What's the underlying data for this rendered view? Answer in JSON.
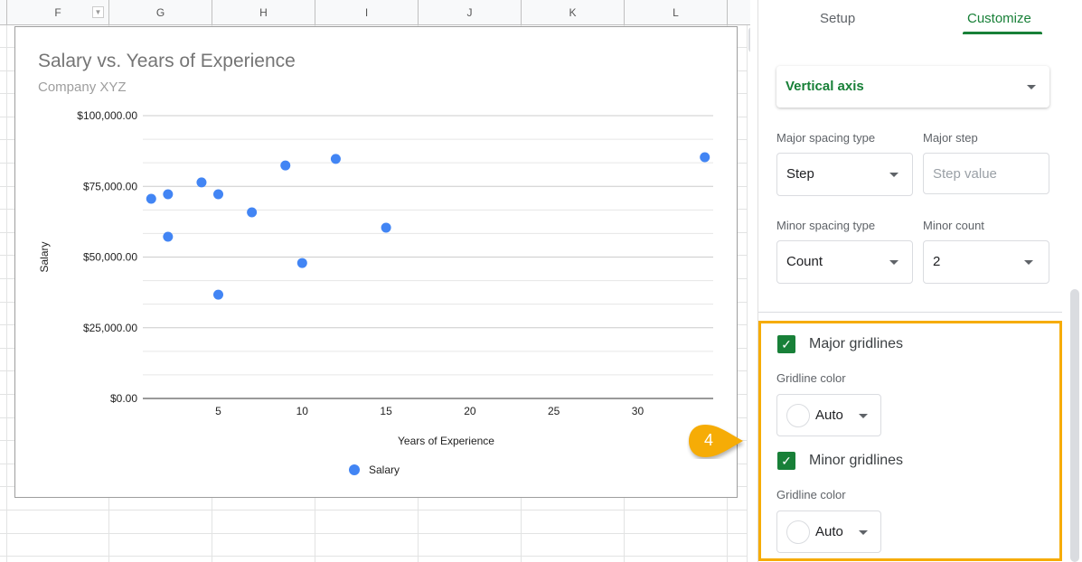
{
  "sheet": {
    "columns": [
      "F",
      "G",
      "H",
      "I",
      "J",
      "K",
      "L"
    ]
  },
  "chart": {
    "title": "Salary vs. Years of Experience",
    "subtitle": "Company XYZ",
    "legend_label": "Salary"
  },
  "chart_data": {
    "type": "scatter",
    "title": "Salary vs. Years of Experience",
    "subtitle": "Company XYZ",
    "xlabel": "Years of Experience",
    "ylabel": "Salary",
    "x_ticks": [
      "5",
      "10",
      "15",
      "20",
      "25",
      "30"
    ],
    "y_ticks": [
      "$0.00",
      "$25,000.00",
      "$50,000.00",
      "$75,000.00",
      "$100,000.00"
    ],
    "xlim": [
      0.5,
      34.5
    ],
    "ylim": [
      0,
      100000
    ],
    "major_gridlines": true,
    "minor_gridlines": true,
    "minor_count": 2,
    "legend_placement": "bottom",
    "series": [
      {
        "name": "Salary",
        "color": "#4285f4",
        "points": [
          [
            1,
            70600
          ],
          [
            2,
            72200
          ],
          [
            2,
            57200
          ],
          [
            4,
            76400
          ],
          [
            5,
            72200
          ],
          [
            5,
            36700
          ],
          [
            7,
            65800
          ],
          [
            9,
            82400
          ],
          [
            10,
            47900
          ],
          [
            12,
            84700
          ],
          [
            15,
            60400
          ],
          [
            34,
            85300
          ]
        ]
      }
    ]
  },
  "panel": {
    "tabs": [
      {
        "label": "Setup"
      },
      {
        "label": "Customize"
      }
    ],
    "section": "Vertical axis",
    "major_spacing_type": {
      "label": "Major spacing type",
      "value": "Step"
    },
    "major_step": {
      "label": "Major step",
      "placeholder": "Step value"
    },
    "minor_spacing_type": {
      "label": "Minor spacing type",
      "value": "Count"
    },
    "minor_count": {
      "label": "Minor count",
      "value": "2"
    },
    "major_gridlines": {
      "label": "Major gridlines",
      "checked": true,
      "color_label": "Gridline color",
      "color_value": "Auto"
    },
    "minor_gridlines": {
      "label": "Minor gridlines",
      "checked": true,
      "color_label": "Gridline color",
      "color_value": "Auto"
    }
  },
  "callout": {
    "label": "4",
    "color": "#f6ac06"
  },
  "colors": {
    "accent": "#188038",
    "highlight": "#f6ac06",
    "point": "#4285f4"
  }
}
